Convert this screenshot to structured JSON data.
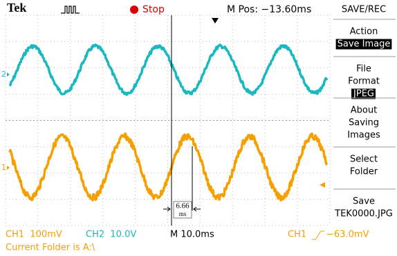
{
  "header": {
    "brand": "Tek",
    "run_state": "Stop",
    "m_pos": "M Pos: −13.60ms"
  },
  "menu": {
    "title": "SAVE/REC",
    "sections": [
      {
        "lines": [
          "Action"
        ],
        "value": "Save Image"
      },
      {
        "lines": [
          "File",
          "Format"
        ],
        "value": "JPEG"
      },
      {
        "lines": [
          "About",
          "Saving",
          "Images"
        ]
      },
      {
        "lines": [
          "Select",
          "Folder"
        ]
      },
      {
        "lines": [
          "Save",
          "TEK0000.JPG"
        ]
      }
    ]
  },
  "markers": {
    "ch2": "2",
    "ch1": "1"
  },
  "annotation": {
    "value": "6.66",
    "unit": "ms"
  },
  "status": {
    "ch1": "CH1  100mV",
    "ch2": "CH2  10.0V",
    "timebase": "M 10.0ms",
    "trigger_source": "CH1",
    "trigger_level": "−63.0mV"
  },
  "footer": {
    "folder": "Current Folder is A:\\"
  }
}
